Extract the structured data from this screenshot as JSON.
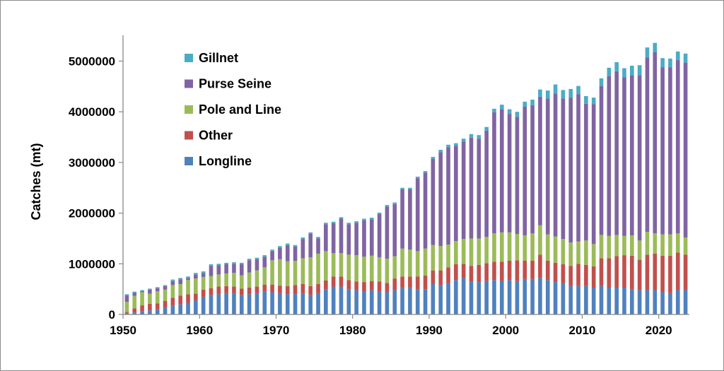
{
  "chart_data": {
    "type": "bar",
    "stacked": true,
    "title": "",
    "xlabel": "",
    "ylabel": "Catches (mt)",
    "ylim": [
      0,
      5500000
    ],
    "yticks": [
      0,
      1000000,
      2000000,
      3000000,
      4000000,
      5000000
    ],
    "ytick_labels": [
      "0",
      "1000000",
      "2000000",
      "3000000",
      "4000000",
      "5000000"
    ],
    "xlim": [
      1950,
      2023
    ],
    "xticks": [
      1950,
      1960,
      1970,
      1980,
      1990,
      2000,
      2010,
      2020
    ],
    "xtick_labels": [
      "1950",
      "1960",
      "1970",
      "1980",
      "1990",
      "2000",
      "2010",
      "2020"
    ],
    "grid": false,
    "legend_position": "top-left",
    "legend_order": [
      "Gillnet",
      "Purse Seine",
      "Pole and Line",
      "Other",
      "Longline"
    ],
    "x": [
      1950,
      1951,
      1952,
      1953,
      1954,
      1955,
      1956,
      1957,
      1958,
      1959,
      1960,
      1961,
      1962,
      1963,
      1964,
      1965,
      1966,
      1967,
      1968,
      1969,
      1970,
      1971,
      1972,
      1973,
      1974,
      1975,
      1976,
      1977,
      1978,
      1979,
      1980,
      1981,
      1982,
      1983,
      1984,
      1985,
      1986,
      1987,
      1988,
      1989,
      1990,
      1991,
      1992,
      1993,
      1994,
      1995,
      1996,
      1997,
      1998,
      1999,
      2000,
      2001,
      2002,
      2003,
      2004,
      2005,
      2006,
      2007,
      2008,
      2009,
      2010,
      2011,
      2012,
      2013,
      2014,
      2015,
      2016,
      2017,
      2018,
      2019,
      2020,
      2021,
      2022,
      2023
    ],
    "series": [
      {
        "name": "Longline",
        "color": "#4f81bd",
        "values": [
          30000,
          40000,
          60000,
          80000,
          100000,
          130000,
          170000,
          200000,
          230000,
          280000,
          350000,
          380000,
          400000,
          420000,
          420000,
          380000,
          400000,
          420000,
          450000,
          440000,
          420000,
          400000,
          400000,
          420000,
          380000,
          420000,
          500000,
          550000,
          550000,
          500000,
          480000,
          460000,
          480000,
          460000,
          440000,
          480000,
          520000,
          520000,
          500000,
          500000,
          600000,
          580000,
          620000,
          680000,
          720000,
          650000,
          640000,
          660000,
          680000,
          660000,
          680000,
          660000,
          700000,
          700000,
          720000,
          680000,
          640000,
          620000,
          560000,
          560000,
          560000,
          530000,
          560000,
          530000,
          530000,
          530000,
          500000,
          480000,
          480000,
          480000,
          440000,
          420000,
          480000,
          480000
        ]
      },
      {
        "name": "Other",
        "color": "#c0504d",
        "values": [
          20000,
          80000,
          120000,
          130000,
          120000,
          140000,
          160000,
          170000,
          170000,
          130000,
          140000,
          140000,
          150000,
          140000,
          130000,
          130000,
          130000,
          130000,
          140000,
          150000,
          150000,
          160000,
          180000,
          180000,
          180000,
          180000,
          170000,
          200000,
          200000,
          180000,
          170000,
          180000,
          180000,
          190000,
          180000,
          230000,
          230000,
          230000,
          250000,
          270000,
          270000,
          290000,
          310000,
          310000,
          280000,
          310000,
          340000,
          350000,
          360000,
          380000,
          380000,
          410000,
          360000,
          360000,
          460000,
          380000,
          380000,
          370000,
          400000,
          440000,
          420000,
          420000,
          550000,
          580000,
          620000,
          640000,
          660000,
          600000,
          700000,
          720000,
          720000,
          740000,
          740000,
          700000
        ]
      },
      {
        "name": "Pole and Line",
        "color": "#9bbb59",
        "values": [
          200000,
          250000,
          260000,
          200000,
          240000,
          220000,
          250000,
          230000,
          280000,
          300000,
          250000,
          240000,
          240000,
          250000,
          270000,
          260000,
          300000,
          320000,
          340000,
          480000,
          520000,
          490000,
          480000,
          510000,
          570000,
          600000,
          580000,
          460000,
          460000,
          500000,
          520000,
          500000,
          500000,
          480000,
          480000,
          440000,
          550000,
          530000,
          500000,
          530000,
          500000,
          480000,
          450000,
          460000,
          490000,
          540000,
          520000,
          520000,
          560000,
          580000,
          560000,
          520000,
          500000,
          540000,
          580000,
          520000,
          520000,
          500000,
          460000,
          440000,
          480000,
          440000,
          460000,
          440000,
          420000,
          380000,
          400000,
          380000,
          450000,
          400000,
          420000,
          420000,
          380000,
          340000
        ]
      },
      {
        "name": "Purse Seine",
        "color": "#8064a2",
        "values": [
          130000,
          60000,
          20000,
          80000,
          60000,
          70000,
          80000,
          90000,
          40000,
          80000,
          80000,
          200000,
          180000,
          180000,
          180000,
          220000,
          240000,
          220000,
          210000,
          180000,
          230000,
          320000,
          280000,
          380000,
          460000,
          300000,
          530000,
          590000,
          680000,
          600000,
          640000,
          720000,
          720000,
          850000,
          1030000,
          1030000,
          1170000,
          1190000,
          1440000,
          1500000,
          1700000,
          1850000,
          1920000,
          1880000,
          1920000,
          1990000,
          1970000,
          2100000,
          2390000,
          2430000,
          2340000,
          2310000,
          2540000,
          2530000,
          2540000,
          2680000,
          2820000,
          2770000,
          2860000,
          2910000,
          2700000,
          2760000,
          2940000,
          3160000,
          3230000,
          3130000,
          3160000,
          3260000,
          3440000,
          3580000,
          3300000,
          3300000,
          3420000,
          3450000
        ]
      },
      {
        "name": "Gillnet",
        "color": "#4bacc6",
        "values": [
          20000,
          20000,
          20000,
          20000,
          20000,
          20000,
          30000,
          30000,
          30000,
          30000,
          30000,
          30000,
          30000,
          30000,
          30000,
          30000,
          30000,
          30000,
          30000,
          30000,
          30000,
          30000,
          30000,
          30000,
          30000,
          30000,
          30000,
          30000,
          30000,
          30000,
          30000,
          30000,
          30000,
          30000,
          30000,
          30000,
          30000,
          30000,
          30000,
          30000,
          40000,
          50000,
          50000,
          50000,
          60000,
          70000,
          70000,
          70000,
          70000,
          90000,
          90000,
          100000,
          100000,
          110000,
          140000,
          160000,
          180000,
          170000,
          170000,
          160000,
          150000,
          130000,
          150000,
          160000,
          180000,
          180000,
          190000,
          200000,
          200000,
          180000,
          180000,
          170000,
          170000,
          180000
        ]
      }
    ]
  }
}
